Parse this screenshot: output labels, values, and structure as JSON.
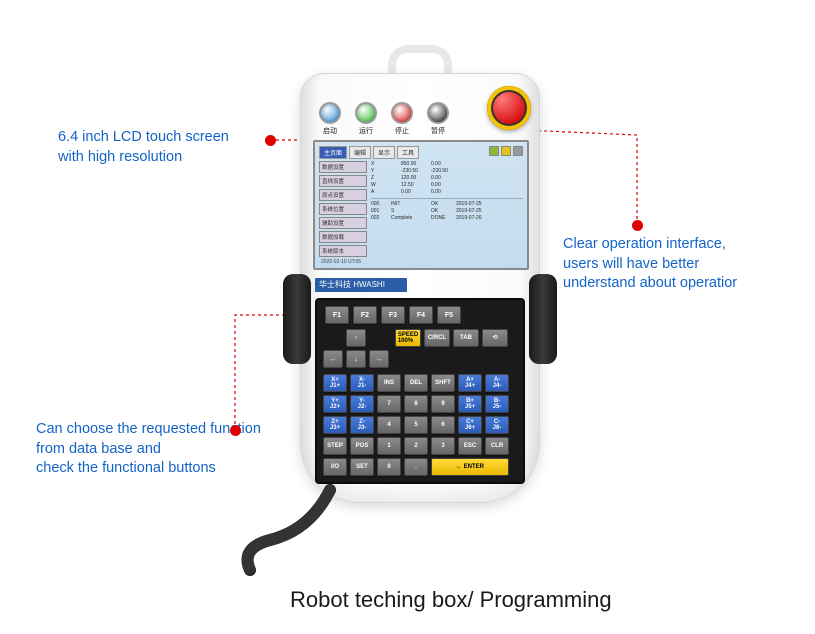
{
  "title": "Robot teching box/ Programming",
  "annotations": {
    "topLeft": "6.4 inch LCD touch screen\nwith high resolution",
    "right": "Clear operation interface,\nusers will have better\nunderstand about operatior",
    "bottomLeft": "Can choose the requested function\nfrom data base and\ncheck the functional buttons"
  },
  "pendant": {
    "brand": "华士科技 HWASHI",
    "topButtons": [
      {
        "color": "#2a88d8",
        "label": "启动"
      },
      {
        "color": "#2ab82a",
        "label": "运行"
      },
      {
        "color": "#d81010",
        "label": "停止"
      },
      {
        "color": "#1a1a1a",
        "label": "暂停"
      }
    ],
    "lcd": {
      "tabs": [
        "主页面",
        "编辑",
        "显示",
        "工具"
      ],
      "activeTab": 0,
      "iconColors": [
        "#8aba38",
        "#e8c020",
        "#999"
      ],
      "sideButtons": [
        "数据设置",
        "直线设置",
        "原点设置",
        "系统位置",
        "辅助设置",
        "数据加载",
        "系统版本"
      ],
      "coords": [
        {
          "ax": "X",
          "v1": "850.00",
          "v2": "0.00"
        },
        {
          "ax": "Y",
          "v1": "-230.50",
          "v2": "-230.50"
        },
        {
          "ax": "Z",
          "v1": "120.00",
          "v2": "0.00"
        },
        {
          "ax": "W",
          "v1": "12.50",
          "v2": "0.00"
        },
        {
          "ax": "A",
          "v1": "0.00",
          "v2": "0.00"
        }
      ],
      "log": [
        {
          "id": "000",
          "txt": "INIT",
          "st": "OK",
          "date": "2019-07-25"
        },
        {
          "id": "001",
          "txt": "S",
          "st": "OK",
          "date": "2019-07-25"
        },
        {
          "id": "002",
          "txt": "Complete",
          "st": "DONE",
          "date": "2019-07-26"
        }
      ],
      "footer": "2020-02-10  UT:05"
    },
    "fkeys": [
      "F1",
      "F2",
      "F3",
      "F4",
      "F5"
    ],
    "arrows": {
      "up": "↑",
      "down": "↓",
      "left": "←",
      "right": "→"
    },
    "row2": [
      {
        "label": "SPEED\n100%",
        "cls": "key-yellow key-sm"
      },
      {
        "label": "CIRCL",
        "cls": "key-sm"
      },
      {
        "label": "TAB",
        "cls": "key-sm"
      },
      {
        "label": "⟲",
        "cls": "key-sm"
      }
    ],
    "mainKeys": [
      "X+\nJ1+",
      "X-\nJ1-",
      "INS",
      "DEL",
      "SHFT",
      "A+\nJ4+",
      "A-\nJ4-",
      "Y+\nJ2+",
      "Y-\nJ2-",
      "7",
      "8",
      "9",
      "B+\nJ5+",
      "B-\nJ5-",
      "Z+\nJ3+",
      "Z-\nJ3-",
      "4",
      "5",
      "6",
      "C+\nJ6+",
      "C-\nJ6-",
      "STEP",
      "POS",
      "1",
      "2",
      "3",
      "ESC",
      "CLR",
      "I/O",
      "SET",
      "0",
      ".",
      "ENTER"
    ],
    "enterLabel": "← ENTER"
  },
  "style": {
    "annotationColor": "#1464c8",
    "dotColor": "#e00000",
    "titleColor": "#1a1a1a",
    "bg": "#ffffff"
  }
}
